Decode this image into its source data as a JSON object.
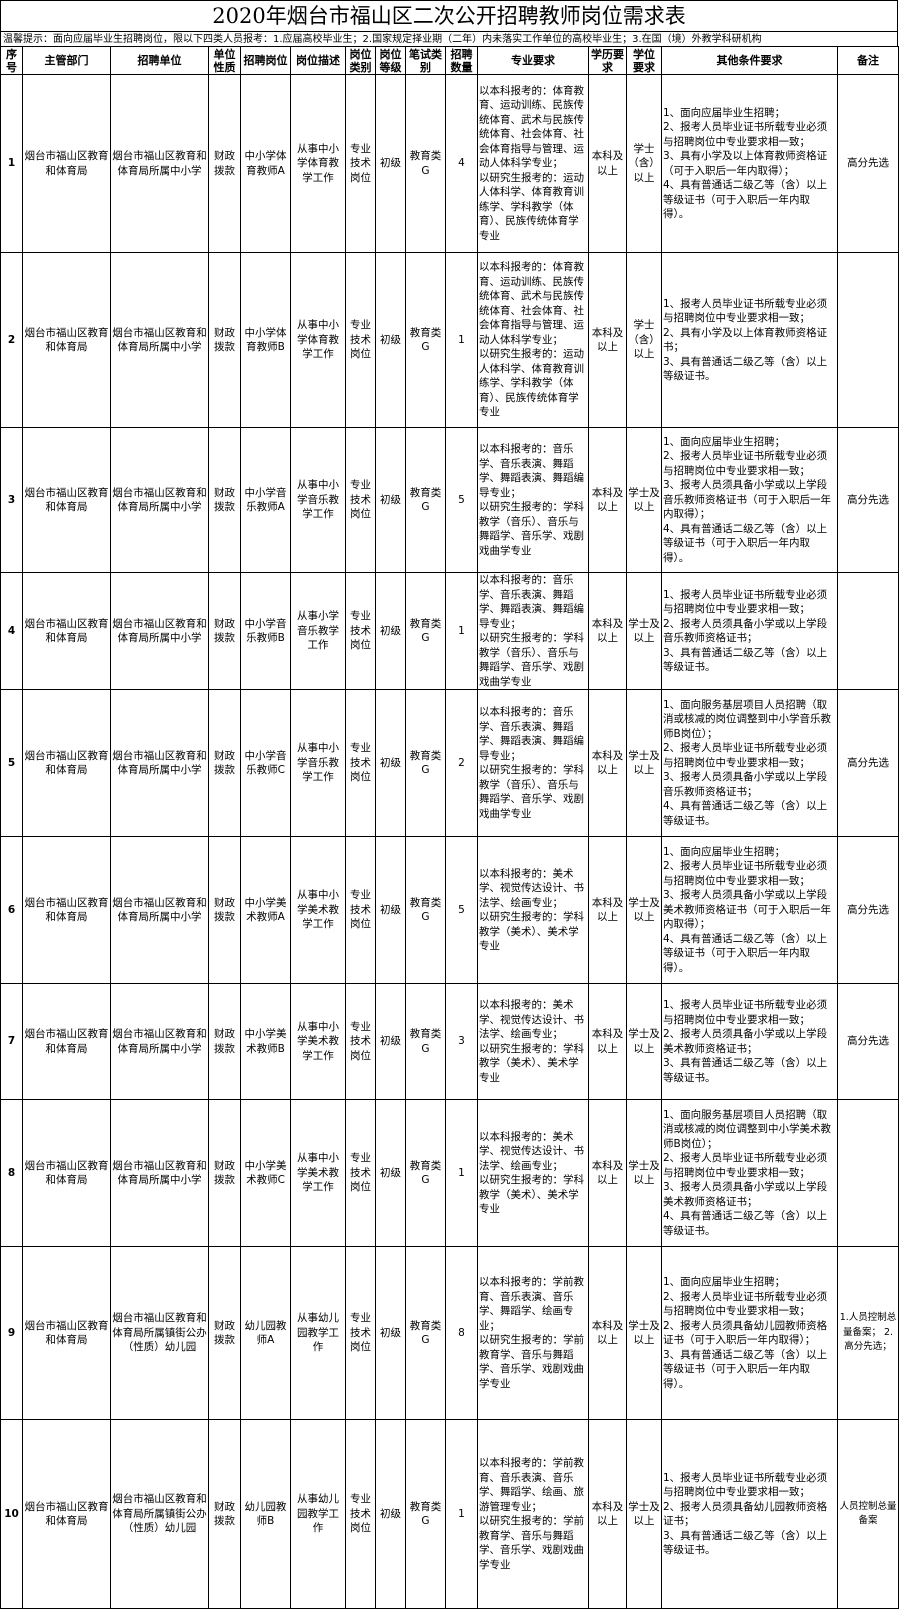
{
  "header": {
    "title": "2020年烟台市福山区二次公开招聘教师岗位需求表",
    "notice": "温馨提示：面向应届毕业生招聘岗位，限以下四类人员报考：1.应届高校毕业生；2.国家规定择业期（二年）内未落实工作单位的高校毕业生；3.在国（境）外教学科研机构"
  },
  "table": {
    "headers": [
      "序号",
      "主管部门",
      "招聘单位",
      "单位性质",
      "招聘岗位",
      "岗位描述",
      "岗位类别",
      "岗位等级",
      "笔试类别",
      "招聘数量",
      "专业要求",
      "学历要求",
      "学位要求",
      "其他条件要求",
      "备注"
    ],
    "rows": [
      [
        1,
        "烟台市福山区教育和体育局",
        "烟台市福山区教育和体育局所属中小学",
        "财政拨款",
        "中小学体育教师A",
        "从事中小学体育教学工作",
        "专业技术岗位",
        "初级",
        "教育类G",
        4,
        "以本科报考的：体育教育、运动训练、民族传统体育、武术与民族传统体育、社会体育、社会体育指导与管理、运动人体科学专业；\n以研究生报考的：运动人体科学、体育教育训练学、学科教学（体育）、民族传统体育学专业",
        "本科及以上",
        "学士（含）以上",
        "1、面向应届毕业生招聘；\n2、报考人员毕业证书所载专业必须与招聘岗位中专业要求相一致；\n3、具有小学及以上体育教师资格证（可于入职后一年内取得）；\n4、具有普通话二级乙等（含）以上等级证书（可于入职后一年内取得）。",
        "高分先选"
      ],
      [
        2,
        "烟台市福山区教育和体育局",
        "烟台市福山区教育和体育局所属中小学",
        "财政拨款",
        "中小学体育教师B",
        "从事中小学体育教学工作",
        "专业技术岗位",
        "初级",
        "教育类G",
        1,
        "以本科报考的：体育教育、运动训练、民族传统体育、武术与民族传统体育、社会体育、社会体育指导与管理、运动人体科学专业；\n以研究生报考的：运动人体科学、体育教育训练学、学科教学（体育）、民族传统体育学专业",
        "本科及以上",
        "学士（含）以上",
        "1、报考人员毕业证书所载专业必须与招聘岗位中专业要求相一致；\n2、具有小学及以上体育教师资格证书；\n3、具有普通话二级乙等（含）以上等级证书。",
        null
      ],
      [
        3,
        "烟台市福山区教育和体育局",
        "烟台市福山区教育和体育局所属中小学",
        "财政拨款",
        "中小学音乐教师A",
        "从事中小学音乐教学工作",
        "专业技术岗位",
        "初级",
        "教育类G",
        5,
        "以本科报考的：音乐学、音乐表演、舞蹈学、舞蹈表演、舞蹈编导专业；\n以研究生报考的：学科教学（音乐）、音乐与舞蹈学、音乐学、戏剧戏曲学专业",
        "本科及以上",
        "学士及以上",
        "1、面向应届毕业生招聘；\n2、报考人员毕业证书所载专业必须与招聘岗位中专业要求相一致；\n3、报考人员须具备小学或以上学段音乐教师资格证书（可于入职后一年内取得）；\n4、具有普通话二级乙等（含）以上等级证书（可于入职后一年内取得）。",
        "高分先选"
      ],
      [
        4,
        "烟台市福山区教育和体育局",
        "烟台市福山区教育和体育局所属中小学",
        "财政拨款",
        "中小学音乐教师B",
        "从事小学音乐教学工作",
        "专业技术岗位",
        "初级",
        "教育类G",
        1,
        "以本科报考的：音乐学、音乐表演、舞蹈学、舞蹈表演、舞蹈编导专业；\n以研究生报考的：学科教学（音乐）、音乐与舞蹈学、音乐学、戏剧戏曲学专业",
        "本科及以上",
        "学士及以上",
        "1、报考人员毕业证书所载专业必须与招聘岗位中专业要求相一致；\n2、报考人员须具备小学或以上学段音乐教师资格证书；\n3、具有普通话二级乙等（含）以上等级证书。",
        null
      ],
      [
        5,
        "烟台市福山区教育和体育局",
        "烟台市福山区教育和体育局所属中小学",
        "财政拨款",
        "中小学音乐教师C",
        "从事中小学音乐教学工作",
        "专业技术岗位",
        "初级",
        "教育类G",
        2,
        "以本科报考的：音乐学、音乐表演、舞蹈学、舞蹈表演、舞蹈编导专业；\n以研究生报考的：学科教学（音乐）、音乐与舞蹈学、音乐学、戏剧戏曲学专业",
        "本科及以上",
        "学士及以上",
        "1、面向服务基层项目人员招聘（取消或核减的岗位调整到中小学音乐教师B岗位）；\n2、报考人员毕业证书所载专业必须与招聘岗位中专业要求相一致；\n3、报考人员须具备小学或以上学段音乐教师资格证书；\n4、具有普通话二级乙等（含）以上等级证书。",
        "高分先选"
      ],
      [
        6,
        "烟台市福山区教育和体育局",
        "烟台市福山区教育和体育局所属中小学",
        "财政拨款",
        "中小学美术教师A",
        "从事中小学美术教学工作",
        "专业技术岗位",
        "初级",
        "教育类G",
        5,
        "以本科报考的：美术学、视觉传达设计、书法学、绘画专业；\n以研究生报考的：学科教学（美术）、美术学专业",
        "本科及以上",
        "学士及以上",
        "1、面向应届毕业生招聘；\n2、报考人员毕业证书所载专业必须与招聘岗位中专业要求相一致；\n3、报考人员须具备小学或以上学段美术教师资格证书（可于入职后一年内取得）；\n4、具有普通话二级乙等（含）以上等级证书（可于入职后一年内取得）。",
        "高分先选"
      ],
      [
        7,
        "烟台市福山区教育和体育局",
        "烟台市福山区教育和体育局所属中小学",
        "财政拨款",
        "中小学美术教师B",
        "从事中小学美术教学工作",
        "专业技术岗位",
        "初级",
        "教育类G",
        3,
        "以本科报考的：美术学、视觉传达设计、书法学、绘画专业；\n以研究生报考的：学科教学（美术）、美术学专业",
        "本科及以上",
        "学士及以上",
        "1、报考人员毕业证书所载专业必须与招聘岗位中专业要求相一致；\n2、报考人员须具备小学或以上学段美术教师资格证书；\n3、具有普通话二级乙等（含）以上等级证书。",
        "高分先选"
      ],
      [
        8,
        "烟台市福山区教育和体育局",
        "烟台市福山区教育和体育局所属中小学",
        "财政拨款",
        "中小学美术教师C",
        "从事中小学美术教学工作",
        "专业技术岗位",
        "初级",
        "教育类G",
        1,
        "以本科报考的：美术学、视觉传达设计、书法学、绘画专业；\n以研究生报考的：学科教学（美术）、美术学专业",
        "本科及以上",
        "学士及以上",
        "1、面向服务基层项目人员招聘（取消或核减的岗位调整到中小学美术教师B岗位）；\n2、报考人员毕业证书所载专业必须与招聘岗位中专业要求相一致；\n3、报考人员须具备小学或以上学段美术教师资格证书；\n4、具有普通话二级乙等（含）以上等级证书。",
        null
      ],
      [
        9,
        "烟台市福山区教育和体育局",
        "烟台市福山区教育和体育局所属镇街公办（性质）幼儿园",
        "财政拨款",
        "幼儿园教师A",
        "从事幼儿园教学工作",
        "专业技术岗位",
        "初级",
        "教育类G",
        8,
        "以本科报考的：学前教育、音乐表演、音乐学、舞蹈学、绘画专业；\n以研究生报考的：学前教育学、音乐与舞蹈学、音乐学、戏剧戏曲学专业",
        "本科及以上",
        "学士及以上",
        "1、面向应届毕业生招聘；\n2、报考人员毕业证书所载专业必须与招聘岗位中专业要求相一致；\n2、报考人员须具备幼儿园教师资格证书（可于入职后一年内取得）；\n3、具有普通话二级乙等（含）以上等级证书（可于入职后一年内取得）。",
        "1.人员控制总量备案；\n2.高分先选；"
      ],
      [
        10,
        "烟台市福山区教育和体育局",
        "烟台市福山区教育和体育局所属镇街公办（性质）幼儿园",
        "财政拨款",
        "幼儿园教师B",
        "从事幼儿园教学工作",
        "专业技术岗位",
        "初级",
        "教育类G",
        1,
        "以本科报考的：学前教育、音乐表演、音乐学、舞蹈学、绘画、旅游管理专业；\n以研究生报考的：学前教育学、音乐与舞蹈学、音乐学、戏剧戏曲学专业",
        "本科及以上",
        "学士及以上",
        "1、报考人员毕业证书所载专业必须与招聘岗位中专业要求相一致；\n2、报考人员须具备幼儿园教师资格证书；\n3、具有普通话二级乙等（含）以上等级证书。",
        "人员控制总量备案"
      ]
    ]
  }
}
